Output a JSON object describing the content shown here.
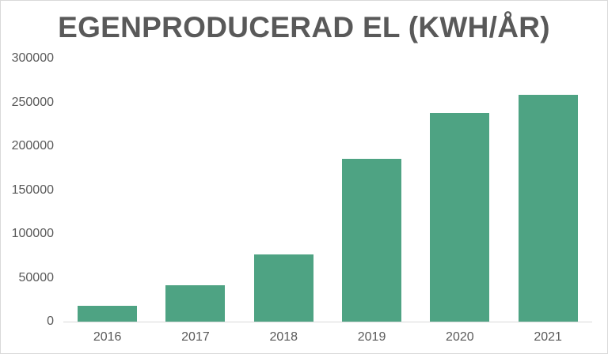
{
  "chart_data": {
    "type": "bar",
    "title": "EGENPRODUCERAD EL (KWH/ÅR)",
    "xlabel": "",
    "ylabel": "",
    "categories": [
      "2016",
      "2017",
      "2018",
      "2019",
      "2020",
      "2021"
    ],
    "values": [
      18000,
      41000,
      76500,
      185500,
      238000,
      259000
    ],
    "ylim": [
      0,
      300000
    ],
    "yticks": [
      "0",
      "50000",
      "100000",
      "150000",
      "200000",
      "250000",
      "300000"
    ],
    "grid": false,
    "legend": null,
    "bar_color": "#4ea383"
  },
  "colors": {
    "bar": "#4ea383",
    "text": "#595959",
    "axis": "#d9d9d9"
  }
}
